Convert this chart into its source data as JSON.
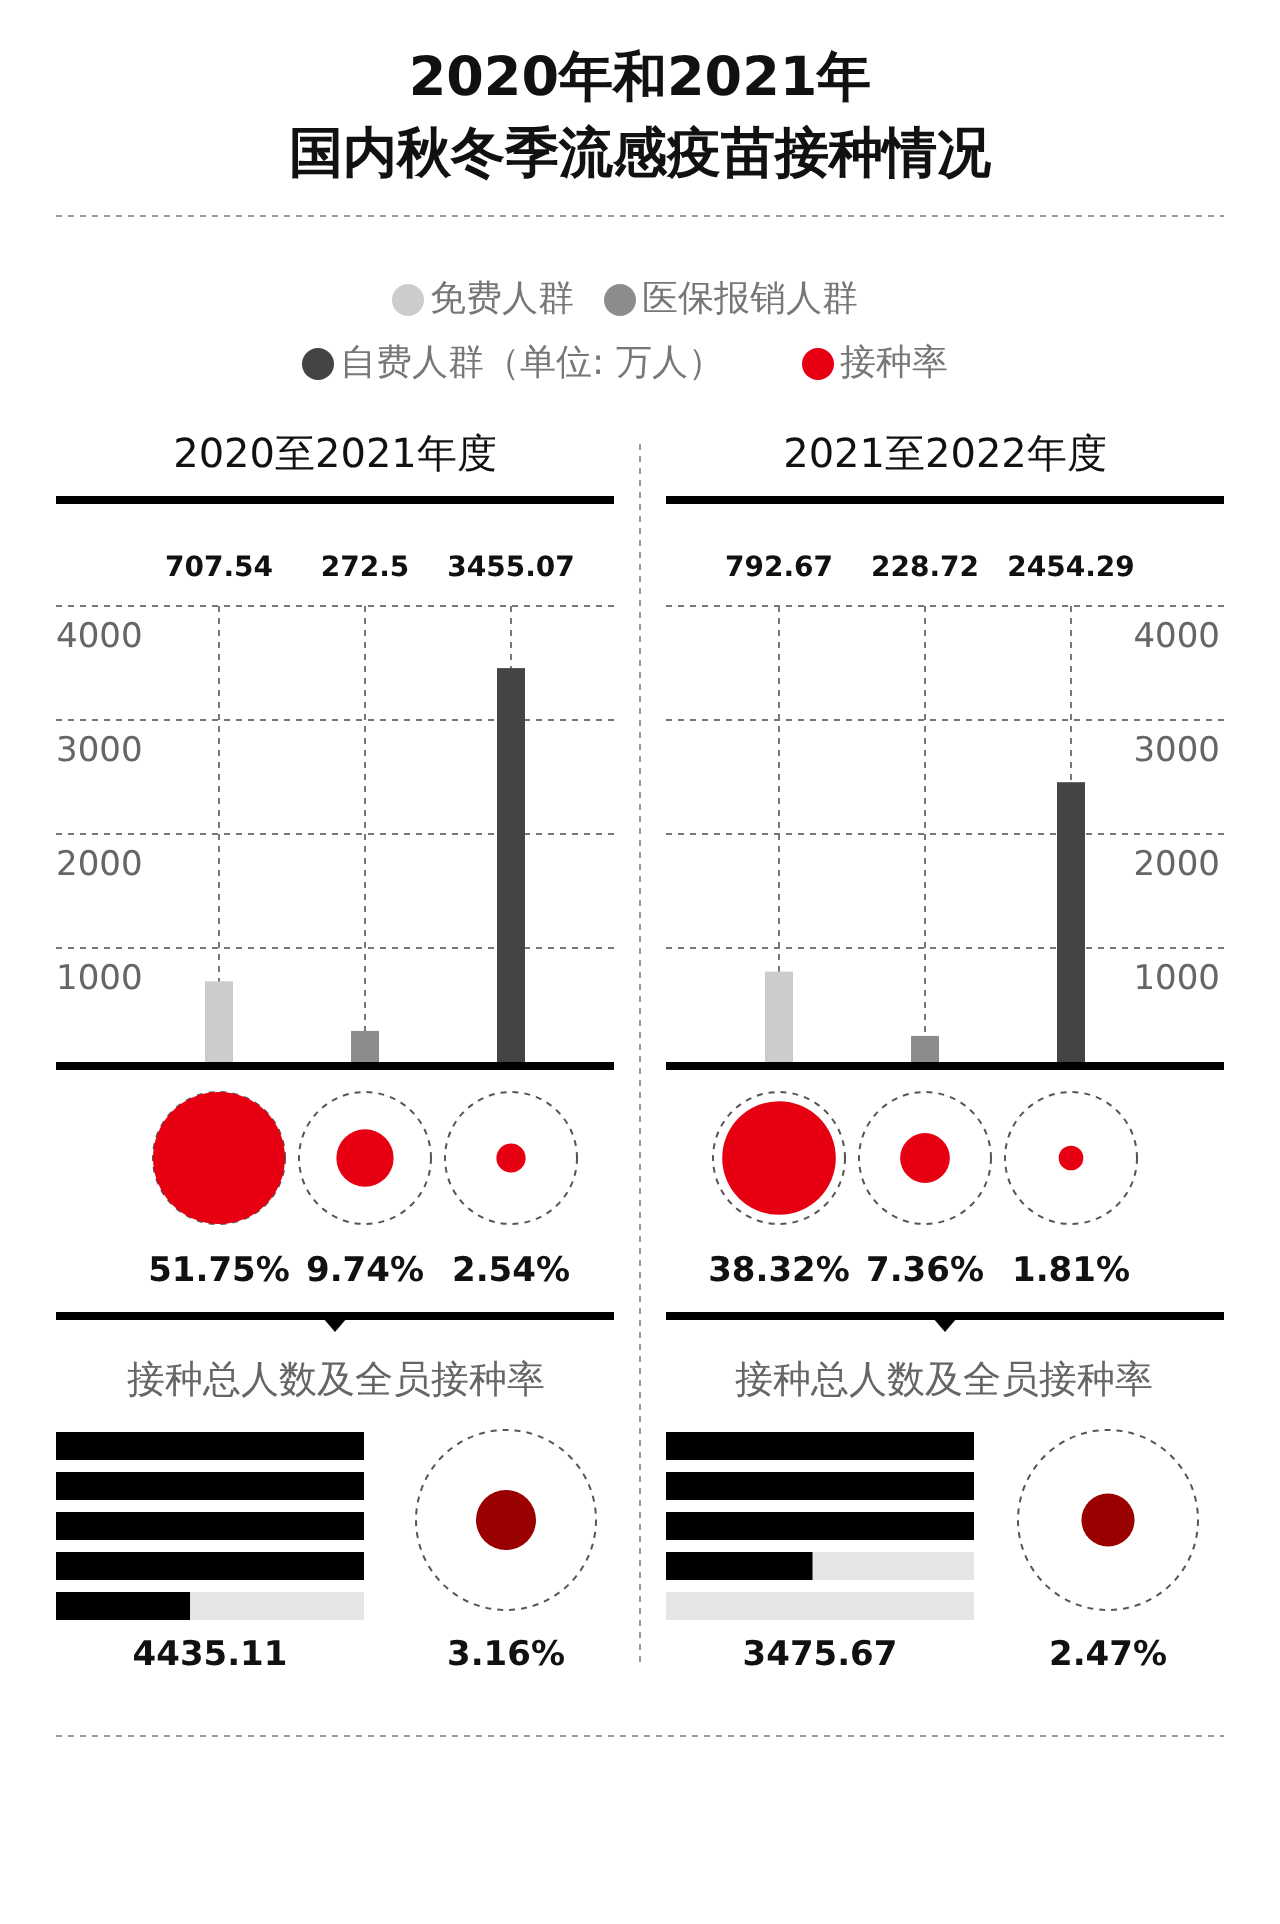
{
  "chart_data": [
    {
      "type": "other",
      "title": "2020年和2021年",
      "subtitle": "国内秋冬季流感疫苗接种情况",
      "legend": "top",
      "series": [
        {
          "name": "免费人群",
          "color": "#cccccc"
        },
        {
          "name": "医保报销人群",
          "color": "#8c8c8c"
        },
        {
          "name": "自费人群（单位: 万人）",
          "color": "#444444"
        },
        {
          "name": "接种率",
          "color": "#e60012"
        }
      ]
    },
    {
      "type": "bar",
      "title": "2020至2021年度",
      "categories": [
        null,
        null,
        null
      ],
      "values": [
        707.54,
        272.5,
        3455.07
      ],
      "value_labels": [
        "707.54",
        "272.5",
        "3455.07"
      ],
      "colors": [
        "#cccccc",
        "#8c8c8c",
        "#444444"
      ],
      "ylim": [
        0,
        4000
      ],
      "yticks": [
        1000,
        2000,
        3000,
        4000
      ],
      "grid": true
    },
    {
      "type": "other",
      "categories": [
        null,
        null,
        null
      ],
      "values": [
        51.75,
        9.74,
        2.54
      ],
      "value_labels": [
        "51.75%",
        "9.74%",
        "2.54%"
      ],
      "color": "#e60012"
    },
    {
      "type": "other",
      "title": "接种总人数及全员接种率",
      "values": [
        4435.11
      ],
      "data_labels": true,
      "color": "#000000"
    },
    {
      "type": "other",
      "values": [
        3.16
      ],
      "value_labels": [
        "3.16%"
      ],
      "color": "#990000"
    },
    {
      "type": "bar",
      "title": "2021至2022年度",
      "categories": [
        null,
        null,
        null
      ],
      "values": [
        792.67,
        228.72,
        2454.29
      ],
      "value_labels": [
        "792.67",
        "228.72",
        "2454.29"
      ],
      "colors": [
        "#cccccc",
        "#8c8c8c",
        "#444444"
      ],
      "ylim": [
        0,
        4000
      ],
      "yticks": [
        1000,
        2000,
        3000,
        4000
      ],
      "grid": true
    },
    {
      "type": "other",
      "categories": [
        null,
        null,
        null
      ],
      "values": [
        38.32,
        7.36,
        1.81
      ],
      "value_labels": [
        "38.32%",
        "7.36%",
        "1.81%"
      ],
      "color": "#e60012"
    },
    {
      "type": "other",
      "title": "接种总人数及全员接种率",
      "values": [
        3475.67
      ],
      "data_labels": true,
      "color": "#000000"
    },
    {
      "type": "other",
      "values": [
        2.47
      ],
      "value_labels": [
        "2.47%"
      ],
      "color": "#990000"
    }
  ]
}
